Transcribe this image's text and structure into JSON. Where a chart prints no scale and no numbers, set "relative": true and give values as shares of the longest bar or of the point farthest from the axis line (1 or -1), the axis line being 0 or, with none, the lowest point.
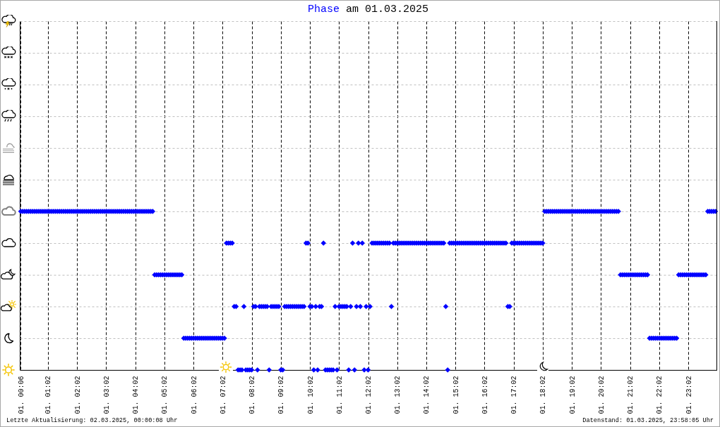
{
  "chart_data": {
    "type": "scatter",
    "title": "Phase am 01.03.2025",
    "color": "#0000ff",
    "marker": "diamond",
    "relative": true,
    "grid": true,
    "annotations": [
      "Letzte Aktualisierung: 02.03.2025, 00:00:08 Uhr",
      "Datenstand: 01.03.2025, 23:58:05 Uhr"
    ],
    "categories": [
      "01. 00:06",
      null,
      null,
      null,
      null,
      null,
      null,
      null,
      null,
      null,
      null,
      null,
      null,
      null,
      "01. 01:02",
      null,
      null,
      null,
      null,
      null,
      null,
      null,
      null,
      null,
      null,
      null,
      null,
      null,
      null,
      "01. 02:02",
      null,
      null,
      null,
      null,
      null,
      null,
      null,
      null,
      null,
      null,
      null,
      null,
      null,
      null,
      "01. 03:02",
      null,
      null,
      null,
      null,
      null,
      null,
      null,
      null,
      null,
      null,
      null,
      null,
      null,
      null,
      "01. 04:02",
      null,
      null,
      null,
      null,
      null,
      null,
      null,
      null,
      null,
      null,
      null,
      null,
      null,
      null,
      "01. 05:02",
      null,
      null,
      null,
      null,
      null,
      null,
      null,
      null,
      null,
      null,
      null,
      null,
      null,
      null,
      "01. 06:02",
      null,
      null,
      null,
      null,
      null,
      null,
      null,
      null,
      null,
      null,
      null,
      null,
      null,
      null,
      "01. 07:02",
      null,
      null,
      null,
      null,
      null,
      null,
      null,
      null,
      null,
      null,
      null,
      null,
      null,
      null,
      "01. 08:02",
      null,
      null,
      null,
      null,
      null,
      null,
      null,
      null,
      null,
      null,
      null,
      null,
      null,
      null,
      "01. 09:02",
      null,
      null,
      null,
      null,
      null,
      null,
      null,
      null,
      null,
      null,
      null,
      null,
      null,
      null,
      "01. 10:02",
      null,
      null,
      null,
      null,
      null,
      null,
      null,
      null,
      null,
      null,
      null,
      null,
      null,
      null,
      "01. 11:02",
      null,
      null,
      null,
      null,
      null,
      null,
      null,
      null,
      null,
      null,
      null,
      null,
      null,
      null,
      "01. 12:02",
      null,
      null,
      null,
      null,
      null,
      null,
      null,
      null,
      null,
      null,
      null,
      null,
      null,
      null,
      "01. 13:02",
      null,
      null,
      null,
      null,
      null,
      null,
      null,
      null,
      null,
      null,
      null,
      null,
      null,
      null,
      "01. 14:02",
      null,
      null,
      null,
      null,
      null,
      null,
      null,
      null,
      null,
      null,
      null,
      null,
      null,
      null,
      "01. 15:02",
      null,
      null,
      null,
      null,
      null,
      null,
      null,
      null,
      null,
      null,
      null,
      null,
      null,
      null,
      "01. 16:02",
      null,
      null,
      null,
      null,
      null,
      null,
      null,
      null,
      null,
      null,
      null,
      null,
      null,
      null,
      "01. 17:02",
      null,
      null,
      null,
      null,
      null,
      null,
      null,
      null,
      null,
      null,
      null,
      null,
      null,
      null,
      "01. 18:02",
      null,
      null,
      null,
      null,
      null,
      null,
      null,
      null,
      null,
      null,
      null,
      null,
      null,
      null,
      "01. 19:02",
      null,
      null,
      null,
      null,
      null,
      null,
      null,
      null,
      null,
      null,
      null,
      null,
      null,
      null,
      "01. 20:02",
      null,
      null,
      null,
      null,
      null,
      null,
      null,
      null,
      null,
      null,
      null,
      null,
      null,
      null,
      "01. 21:02",
      null,
      null,
      null,
      null,
      null,
      null,
      null,
      null,
      null,
      null,
      null,
      null,
      null,
      null,
      "01. 22:02",
      null,
      null,
      null,
      null,
      null,
      null,
      null,
      null,
      null,
      null,
      null,
      null,
      null,
      null,
      "01. 23:02",
      null,
      null,
      null,
      null,
      null,
      null,
      null,
      null,
      null,
      null,
      null,
      null,
      null,
      null
    ],
    "values": [
      1,
      1,
      1,
      1,
      1,
      1,
      1,
      1,
      1,
      1,
      1,
      1,
      1,
      1,
      1,
      1,
      1,
      1,
      1,
      1,
      1,
      1,
      1,
      1,
      1,
      1,
      1,
      1,
      1,
      1,
      1,
      1,
      1,
      1,
      1,
      1,
      1,
      1,
      1,
      1,
      1,
      1,
      1,
      1,
      1,
      1,
      1,
      1,
      1,
      1,
      1,
      1,
      1,
      1,
      1,
      1,
      1,
      1,
      1,
      1,
      1,
      1,
      1,
      1,
      1,
      1,
      1,
      1,
      1,
      0.6,
      0.6,
      0.6,
      0.6,
      0.6,
      0.6,
      0.6,
      0.6,
      0.6,
      0.6,
      0.6,
      0.6,
      0.6,
      0.6,
      0.6,
      0.2,
      0.2,
      0.2,
      0.2,
      0.2,
      0.2,
      0.2,
      0.2,
      0.2,
      0.2,
      0.2,
      0.2,
      0.2,
      0.2,
      0.2,
      0.2,
      0.2,
      0.2,
      0.2,
      0.2,
      0.2,
      0.2,
      0.8,
      0.8,
      0.8,
      0.8,
      0.4,
      0.4,
      0,
      0,
      0,
      0.4,
      0,
      0,
      0,
      0,
      0.4,
      0.4,
      0,
      0.4,
      0.4,
      0.4,
      0.4,
      0.4,
      0,
      0.4,
      0.4,
      0.4,
      0.4,
      0.4,
      0,
      0,
      0.4,
      0.4,
      0.4,
      0.4,
      0.4,
      0.4,
      0.4,
      0.4,
      0.4,
      0.4,
      0.4,
      0.8,
      0.8,
      0.4,
      0.4,
      0,
      0.4,
      0,
      0.4,
      0.4,
      0.8,
      0,
      0,
      0,
      0,
      0,
      0.4,
      0,
      0.4,
      0.4,
      0.4,
      0.4,
      0.4,
      0,
      0.4,
      0.8,
      0,
      0.4,
      0.8,
      0.4,
      0.8,
      0,
      0.4,
      0,
      0.4,
      0.8,
      0.8,
      0.8,
      0.8,
      0.8,
      0.8,
      0.8,
      0.8,
      0.8,
      0.8,
      0.4,
      0.8,
      0.8,
      0.8,
      0.8,
      0.8,
      0.8,
      0.8,
      0.8,
      0.8,
      0.8,
      0.8,
      0.8,
      0.8,
      0.8,
      0.8,
      0.8,
      0.8,
      0.8,
      0.8,
      0.8,
      0.8,
      0.8,
      0.8,
      0.8,
      0.8,
      0.8,
      0.8,
      0.4,
      0,
      0.8,
      0.8,
      0.8,
      0.8,
      0.8,
      0.8,
      0.8,
      0.8,
      0.8,
      0.8,
      0.8,
      0.8,
      0.8,
      0.8,
      0.8,
      0.8,
      0.8,
      0.8,
      0.8,
      0.8,
      0.8,
      0.8,
      0.8,
      0.8,
      0.8,
      0.8,
      0.8,
      0.8,
      0.8,
      0.8,
      0.4,
      0.4,
      0.8,
      0.8,
      0.8,
      0.8,
      0.8,
      0.8,
      0.8,
      0.8,
      0.8,
      0.8,
      0.8,
      0.8,
      0.8,
      0.8,
      0.8,
      0.8,
      0.8,
      1,
      1,
      1,
      1,
      1,
      1,
      1,
      1,
      1,
      1,
      1,
      1,
      1,
      1,
      1,
      1,
      1,
      1,
      1,
      1,
      1,
      1,
      1,
      1,
      1,
      1,
      1,
      1,
      1,
      1,
      1,
      1,
      1,
      1,
      1,
      1,
      1,
      1,
      1,
      0.6,
      0.6,
      0.6,
      0.6,
      0.6,
      0.6,
      0.6,
      0.6,
      0.6,
      0.6,
      0.6,
      0.6,
      0.6,
      0.6,
      0.6,
      0.2,
      0.2,
      0.2,
      0.2,
      0.2,
      0.2,
      0.2,
      0.2,
      0.2,
      0.2,
      0.2,
      0.2,
      0.2,
      0.2,
      0.2,
      0.6,
      0.6,
      0.6,
      0.6,
      0.6,
      0.6,
      0.6,
      0.6,
      0.6,
      0.6,
      0.6,
      0.6,
      0.6,
      0.6,
      0.6,
      1,
      1,
      1,
      1,
      1
    ]
  }
}
